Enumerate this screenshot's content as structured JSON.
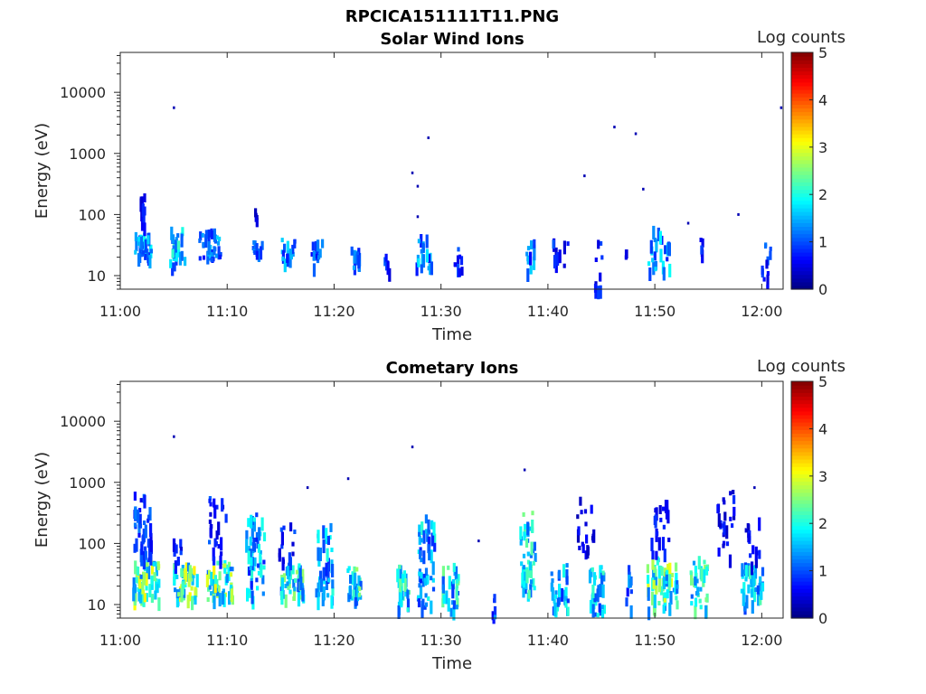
{
  "figure_title": "RPCICA151111T11.PNG",
  "chart_data": [
    {
      "type": "heatmap",
      "title": "Solar Wind Ions",
      "xlabel": "Time",
      "ylabel": "Energy (eV)",
      "x_ticks": [
        "11:00",
        "11:10",
        "11:20",
        "11:30",
        "11:40",
        "11:50",
        "12:00"
      ],
      "x_range_minutes": [
        0,
        62
      ],
      "y_scale": "log",
      "y_range": [
        6,
        45000
      ],
      "y_ticks": [
        10,
        100,
        1000,
        10000
      ],
      "y_tick_labels": [
        "10",
        "100",
        "1000",
        "10000"
      ],
      "colorbar": {
        "label": "Log counts",
        "range": [
          0,
          5
        ],
        "ticks": [
          "0",
          "1",
          "2",
          "3",
          "4",
          "5"
        ]
      },
      "clusters": [
        {
          "t": 2.0,
          "dt": 1.6,
          "e_lo": 18,
          "e_hi": 48,
          "level": 1.4,
          "n": 34
        },
        {
          "t": 2.0,
          "dt": 0.4,
          "e_lo": 50,
          "e_hi": 290,
          "level": 0.6,
          "n": 10
        },
        {
          "t": 5.3,
          "dt": 1.5,
          "e_lo": 15,
          "e_hi": 60,
          "level": 1.6,
          "n": 26
        },
        {
          "t": 8.3,
          "dt": 2.0,
          "e_lo": 18,
          "e_hi": 55,
          "level": 1.3,
          "n": 32
        },
        {
          "t": 12.8,
          "dt": 1.0,
          "e_lo": 22,
          "e_hi": 40,
          "level": 1.0,
          "n": 10
        },
        {
          "t": 12.6,
          "dt": 0.2,
          "e_lo": 80,
          "e_hi": 125,
          "level": 0.4,
          "n": 4
        },
        {
          "t": 15.5,
          "dt": 1.4,
          "e_lo": 14,
          "e_hi": 40,
          "level": 1.3,
          "n": 18
        },
        {
          "t": 18.3,
          "dt": 1.0,
          "e_lo": 13,
          "e_hi": 38,
          "level": 1.0,
          "n": 14
        },
        {
          "t": 21.8,
          "dt": 0.9,
          "e_lo": 12,
          "e_hi": 30,
          "level": 1.1,
          "n": 14
        },
        {
          "t": 24.8,
          "dt": 0.6,
          "e_lo": 12,
          "e_hi": 22,
          "level": 0.8,
          "n": 6
        },
        {
          "t": 28.3,
          "dt": 1.4,
          "e_lo": 12,
          "e_hi": 45,
          "level": 1.3,
          "n": 20
        },
        {
          "t": 31.5,
          "dt": 0.8,
          "e_lo": 10,
          "e_hi": 30,
          "level": 0.8,
          "n": 10
        },
        {
          "t": 38.2,
          "dt": 0.8,
          "e_lo": 12,
          "e_hi": 45,
          "level": 1.2,
          "n": 12
        },
        {
          "t": 41.0,
          "dt": 1.5,
          "e_lo": 14,
          "e_hi": 38,
          "level": 0.8,
          "n": 10
        },
        {
          "t": 44.6,
          "dt": 0.8,
          "e_lo": 6,
          "e_hi": 38,
          "level": 0.7,
          "n": 10
        },
        {
          "t": 47.3,
          "dt": 0.3,
          "e_lo": 18,
          "e_hi": 25,
          "level": 0.5,
          "n": 3
        },
        {
          "t": 50.3,
          "dt": 2.0,
          "e_lo": 12,
          "e_hi": 62,
          "level": 1.4,
          "n": 24
        },
        {
          "t": 54.3,
          "dt": 0.3,
          "e_lo": 22,
          "e_hi": 40,
          "level": 0.7,
          "n": 5
        },
        {
          "t": 60.3,
          "dt": 0.9,
          "e_lo": 6,
          "e_hi": 38,
          "level": 0.9,
          "n": 12
        }
      ],
      "points": [
        {
          "t": 5.0,
          "e": 5600
        },
        {
          "t": 27.3,
          "e": 480
        },
        {
          "t": 27.8,
          "e": 290
        },
        {
          "t": 28.8,
          "e": 1800
        },
        {
          "t": 27.8,
          "e": 92
        },
        {
          "t": 43.4,
          "e": 430
        },
        {
          "t": 46.2,
          "e": 2700
        },
        {
          "t": 48.2,
          "e": 2100
        },
        {
          "t": 48.9,
          "e": 260
        },
        {
          "t": 53.1,
          "e": 72
        },
        {
          "t": 57.8,
          "e": 100
        },
        {
          "t": 61.8,
          "e": 5600
        }
      ]
    },
    {
      "type": "heatmap",
      "title": "Cometary Ions",
      "xlabel": "Time",
      "ylabel": "Energy (eV)",
      "x_ticks": [
        "11:00",
        "11:10",
        "11:20",
        "11:30",
        "11:40",
        "11:50",
        "12:00"
      ],
      "x_range_minutes": [
        0,
        62
      ],
      "y_scale": "log",
      "y_range": [
        6,
        45000
      ],
      "y_ticks": [
        10,
        100,
        1000,
        10000
      ],
      "y_tick_labels": [
        "10",
        "100",
        "1000",
        "10000"
      ],
      "colorbar": {
        "label": "Log counts",
        "range": [
          0,
          5
        ],
        "ticks": [
          "0",
          "1",
          "2",
          "3",
          "4",
          "5"
        ]
      },
      "clusters": [
        {
          "t": 2.3,
          "dt": 2.4,
          "e_lo": 12,
          "e_hi": 50,
          "level": 2.3,
          "n": 60
        },
        {
          "t": 2.0,
          "dt": 1.6,
          "e_lo": 50,
          "e_hi": 650,
          "level": 0.9,
          "n": 40
        },
        {
          "t": 6.0,
          "dt": 2.2,
          "e_lo": 12,
          "e_hi": 45,
          "level": 2.4,
          "n": 50
        },
        {
          "t": 5.2,
          "dt": 0.8,
          "e_lo": 45,
          "e_hi": 120,
          "level": 0.8,
          "n": 10
        },
        {
          "t": 9.2,
          "dt": 2.4,
          "e_lo": 12,
          "e_hi": 50,
          "level": 2.3,
          "n": 55
        },
        {
          "t": 9.0,
          "dt": 1.6,
          "e_lo": 50,
          "e_hi": 550,
          "level": 0.8,
          "n": 25
        },
        {
          "t": 12.5,
          "dt": 1.8,
          "e_lo": 12,
          "e_hi": 300,
          "level": 1.5,
          "n": 55
        },
        {
          "t": 16.0,
          "dt": 2.2,
          "e_lo": 12,
          "e_hi": 45,
          "level": 1.9,
          "n": 45
        },
        {
          "t": 15.5,
          "dt": 1.5,
          "e_lo": 45,
          "e_hi": 220,
          "level": 0.8,
          "n": 14
        },
        {
          "t": 19.0,
          "dt": 1.6,
          "e_lo": 12,
          "e_hi": 200,
          "level": 1.5,
          "n": 40
        },
        {
          "t": 21.8,
          "dt": 1.4,
          "e_lo": 12,
          "e_hi": 40,
          "level": 1.9,
          "n": 28
        },
        {
          "t": 26.3,
          "dt": 1.2,
          "e_lo": 8,
          "e_hi": 45,
          "level": 1.8,
          "n": 28
        },
        {
          "t": 28.5,
          "dt": 1.6,
          "e_lo": 8,
          "e_hi": 400,
          "level": 1.5,
          "n": 55
        },
        {
          "t": 30.8,
          "dt": 1.6,
          "e_lo": 8,
          "e_hi": 45,
          "level": 1.8,
          "n": 32
        },
        {
          "t": 34.8,
          "dt": 0.3,
          "e_lo": 6,
          "e_hi": 15,
          "level": 1.0,
          "n": 6
        },
        {
          "t": 38.0,
          "dt": 1.4,
          "e_lo": 12,
          "e_hi": 350,
          "level": 1.8,
          "n": 50
        },
        {
          "t": 41.0,
          "dt": 1.6,
          "e_lo": 8,
          "e_hi": 45,
          "level": 1.5,
          "n": 32
        },
        {
          "t": 43.4,
          "dt": 1.6,
          "e_lo": 60,
          "e_hi": 560,
          "level": 0.5,
          "n": 18
        },
        {
          "t": 44.5,
          "dt": 1.4,
          "e_lo": 6,
          "e_hi": 45,
          "level": 1.6,
          "n": 32
        },
        {
          "t": 47.5,
          "dt": 0.6,
          "e_lo": 8,
          "e_hi": 45,
          "level": 1.1,
          "n": 10
        },
        {
          "t": 50.6,
          "dt": 2.8,
          "e_lo": 8,
          "e_hi": 60,
          "level": 2.2,
          "n": 60
        },
        {
          "t": 50.4,
          "dt": 1.6,
          "e_lo": 60,
          "e_hi": 520,
          "level": 0.7,
          "n": 22
        },
        {
          "t": 54.0,
          "dt": 1.6,
          "e_lo": 8,
          "e_hi": 60,
          "level": 1.9,
          "n": 35
        },
        {
          "t": 56.5,
          "dt": 1.6,
          "e_lo": 60,
          "e_hi": 750,
          "level": 0.6,
          "n": 24
        },
        {
          "t": 59.0,
          "dt": 2.0,
          "e_lo": 8,
          "e_hi": 45,
          "level": 1.7,
          "n": 40
        },
        {
          "t": 59.0,
          "dt": 1.6,
          "e_lo": 45,
          "e_hi": 320,
          "level": 0.6,
          "n": 14
        }
      ],
      "points": [
        {
          "t": 5.0,
          "e": 5600
        },
        {
          "t": 27.3,
          "e": 3800
        },
        {
          "t": 37.8,
          "e": 1600
        },
        {
          "t": 21.3,
          "e": 1150
        },
        {
          "t": 17.5,
          "e": 820
        },
        {
          "t": 59.3,
          "e": 820
        },
        {
          "t": 33.5,
          "e": 110
        }
      ]
    }
  ]
}
